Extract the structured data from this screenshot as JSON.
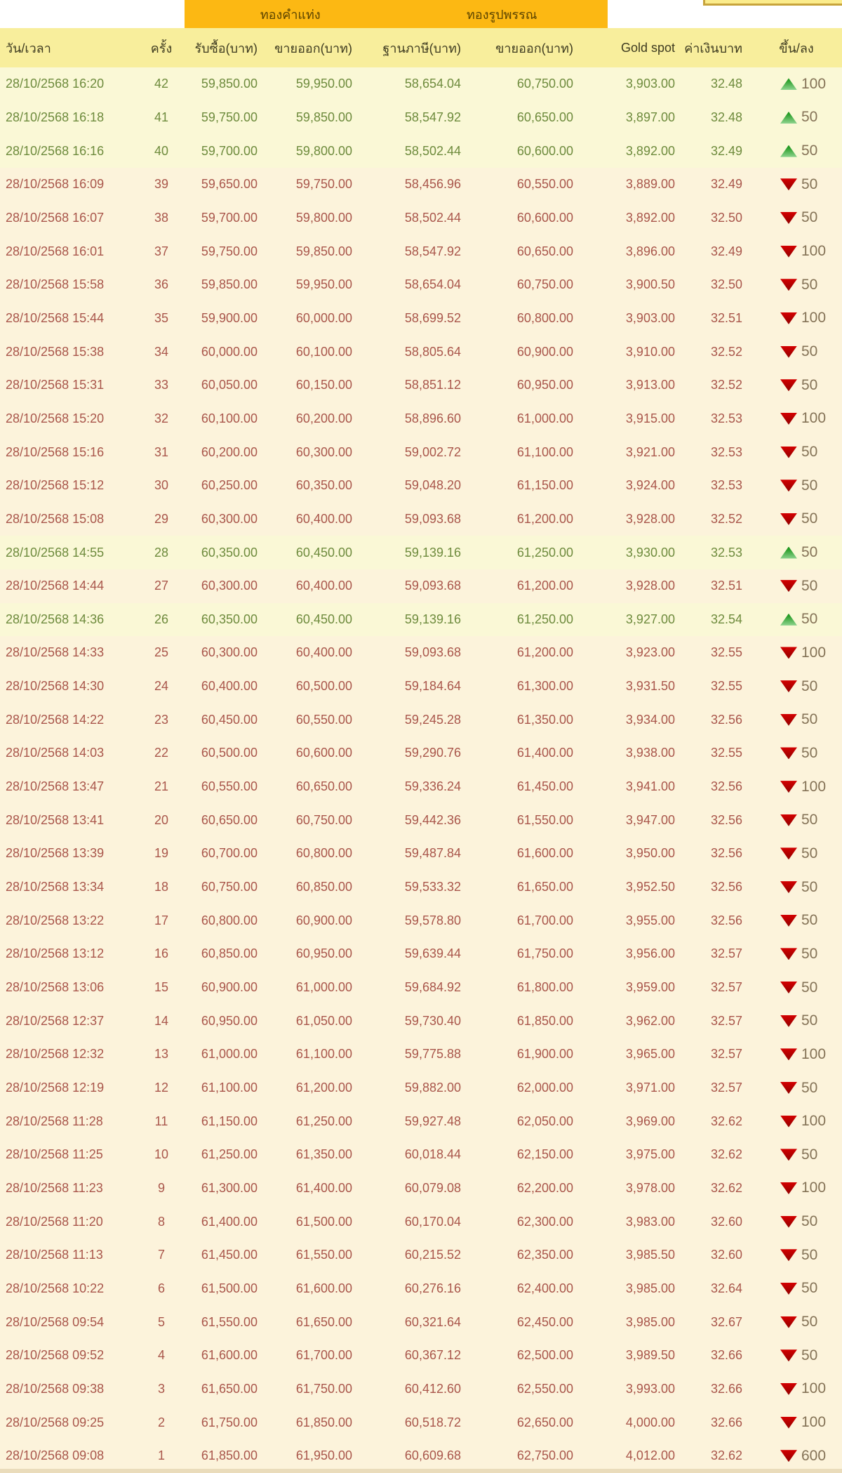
{
  "band": {
    "gold_bar_label": "ทองคำแท่ง",
    "ornament_label": "ทองรูปพรรณ"
  },
  "table": {
    "columns": [
      "วัน/เวลา",
      "ครั้ง",
      "รับซื้อ(บาท)",
      "ขายออก(บาท)",
      "ฐานภาษี(บาท)",
      "ขายออก(บาท)",
      "Gold spot",
      "ค่าเงินบาท",
      "ขึ้น/ลง"
    ],
    "rows": [
      {
        "datetime": "28/10/2568 16:20",
        "no": "42",
        "buy": "59,850.00",
        "sell": "59,950.00",
        "tax_base": "58,654.04",
        "ornament_sell": "60,750.00",
        "gold_spot": "3,903.00",
        "baht_rate": "32.48",
        "direction": "up",
        "change": "100"
      },
      {
        "datetime": "28/10/2568 16:18",
        "no": "41",
        "buy": "59,750.00",
        "sell": "59,850.00",
        "tax_base": "58,547.92",
        "ornament_sell": "60,650.00",
        "gold_spot": "3,897.00",
        "baht_rate": "32.48",
        "direction": "up",
        "change": "50"
      },
      {
        "datetime": "28/10/2568 16:16",
        "no": "40",
        "buy": "59,700.00",
        "sell": "59,800.00",
        "tax_base": "58,502.44",
        "ornament_sell": "60,600.00",
        "gold_spot": "3,892.00",
        "baht_rate": "32.49",
        "direction": "up",
        "change": "50"
      },
      {
        "datetime": "28/10/2568 16:09",
        "no": "39",
        "buy": "59,650.00",
        "sell": "59,750.00",
        "tax_base": "58,456.96",
        "ornament_sell": "60,550.00",
        "gold_spot": "3,889.00",
        "baht_rate": "32.49",
        "direction": "down",
        "change": "50"
      },
      {
        "datetime": "28/10/2568 16:07",
        "no": "38",
        "buy": "59,700.00",
        "sell": "59,800.00",
        "tax_base": "58,502.44",
        "ornament_sell": "60,600.00",
        "gold_spot": "3,892.00",
        "baht_rate": "32.50",
        "direction": "down",
        "change": "50"
      },
      {
        "datetime": "28/10/2568 16:01",
        "no": "37",
        "buy": "59,750.00",
        "sell": "59,850.00",
        "tax_base": "58,547.92",
        "ornament_sell": "60,650.00",
        "gold_spot": "3,896.00",
        "baht_rate": "32.49",
        "direction": "down",
        "change": "100"
      },
      {
        "datetime": "28/10/2568 15:58",
        "no": "36",
        "buy": "59,850.00",
        "sell": "59,950.00",
        "tax_base": "58,654.04",
        "ornament_sell": "60,750.00",
        "gold_spot": "3,900.50",
        "baht_rate": "32.50",
        "direction": "down",
        "change": "50"
      },
      {
        "datetime": "28/10/2568 15:44",
        "no": "35",
        "buy": "59,900.00",
        "sell": "60,000.00",
        "tax_base": "58,699.52",
        "ornament_sell": "60,800.00",
        "gold_spot": "3,903.00",
        "baht_rate": "32.51",
        "direction": "down",
        "change": "100"
      },
      {
        "datetime": "28/10/2568 15:38",
        "no": "34",
        "buy": "60,000.00",
        "sell": "60,100.00",
        "tax_base": "58,805.64",
        "ornament_sell": "60,900.00",
        "gold_spot": "3,910.00",
        "baht_rate": "32.52",
        "direction": "down",
        "change": "50"
      },
      {
        "datetime": "28/10/2568 15:31",
        "no": "33",
        "buy": "60,050.00",
        "sell": "60,150.00",
        "tax_base": "58,851.12",
        "ornament_sell": "60,950.00",
        "gold_spot": "3,913.00",
        "baht_rate": "32.52",
        "direction": "down",
        "change": "50"
      },
      {
        "datetime": "28/10/2568 15:20",
        "no": "32",
        "buy": "60,100.00",
        "sell": "60,200.00",
        "tax_base": "58,896.60",
        "ornament_sell": "61,000.00",
        "gold_spot": "3,915.00",
        "baht_rate": "32.53",
        "direction": "down",
        "change": "100"
      },
      {
        "datetime": "28/10/2568 15:16",
        "no": "31",
        "buy": "60,200.00",
        "sell": "60,300.00",
        "tax_base": "59,002.72",
        "ornament_sell": "61,100.00",
        "gold_spot": "3,921.00",
        "baht_rate": "32.53",
        "direction": "down",
        "change": "50"
      },
      {
        "datetime": "28/10/2568 15:12",
        "no": "30",
        "buy": "60,250.00",
        "sell": "60,350.00",
        "tax_base": "59,048.20",
        "ornament_sell": "61,150.00",
        "gold_spot": "3,924.00",
        "baht_rate": "32.53",
        "direction": "down",
        "change": "50"
      },
      {
        "datetime": "28/10/2568 15:08",
        "no": "29",
        "buy": "60,300.00",
        "sell": "60,400.00",
        "tax_base": "59,093.68",
        "ornament_sell": "61,200.00",
        "gold_spot": "3,928.00",
        "baht_rate": "32.52",
        "direction": "down",
        "change": "50"
      },
      {
        "datetime": "28/10/2568 14:55",
        "no": "28",
        "buy": "60,350.00",
        "sell": "60,450.00",
        "tax_base": "59,139.16",
        "ornament_sell": "61,250.00",
        "gold_spot": "3,930.00",
        "baht_rate": "32.53",
        "direction": "up",
        "change": "50"
      },
      {
        "datetime": "28/10/2568 14:44",
        "no": "27",
        "buy": "60,300.00",
        "sell": "60,400.00",
        "tax_base": "59,093.68",
        "ornament_sell": "61,200.00",
        "gold_spot": "3,928.00",
        "baht_rate": "32.51",
        "direction": "down",
        "change": "50"
      },
      {
        "datetime": "28/10/2568 14:36",
        "no": "26",
        "buy": "60,350.00",
        "sell": "60,450.00",
        "tax_base": "59,139.16",
        "ornament_sell": "61,250.00",
        "gold_spot": "3,927.00",
        "baht_rate": "32.54",
        "direction": "up",
        "change": "50"
      },
      {
        "datetime": "28/10/2568 14:33",
        "no": "25",
        "buy": "60,300.00",
        "sell": "60,400.00",
        "tax_base": "59,093.68",
        "ornament_sell": "61,200.00",
        "gold_spot": "3,923.00",
        "baht_rate": "32.55",
        "direction": "down",
        "change": "100"
      },
      {
        "datetime": "28/10/2568 14:30",
        "no": "24",
        "buy": "60,400.00",
        "sell": "60,500.00",
        "tax_base": "59,184.64",
        "ornament_sell": "61,300.00",
        "gold_spot": "3,931.50",
        "baht_rate": "32.55",
        "direction": "down",
        "change": "50"
      },
      {
        "datetime": "28/10/2568 14:22",
        "no": "23",
        "buy": "60,450.00",
        "sell": "60,550.00",
        "tax_base": "59,245.28",
        "ornament_sell": "61,350.00",
        "gold_spot": "3,934.00",
        "baht_rate": "32.56",
        "direction": "down",
        "change": "50"
      },
      {
        "datetime": "28/10/2568 14:03",
        "no": "22",
        "buy": "60,500.00",
        "sell": "60,600.00",
        "tax_base": "59,290.76",
        "ornament_sell": "61,400.00",
        "gold_spot": "3,938.00",
        "baht_rate": "32.55",
        "direction": "down",
        "change": "50"
      },
      {
        "datetime": "28/10/2568 13:47",
        "no": "21",
        "buy": "60,550.00",
        "sell": "60,650.00",
        "tax_base": "59,336.24",
        "ornament_sell": "61,450.00",
        "gold_spot": "3,941.00",
        "baht_rate": "32.56",
        "direction": "down",
        "change": "100"
      },
      {
        "datetime": "28/10/2568 13:41",
        "no": "20",
        "buy": "60,650.00",
        "sell": "60,750.00",
        "tax_base": "59,442.36",
        "ornament_sell": "61,550.00",
        "gold_spot": "3,947.00",
        "baht_rate": "32.56",
        "direction": "down",
        "change": "50"
      },
      {
        "datetime": "28/10/2568 13:39",
        "no": "19",
        "buy": "60,700.00",
        "sell": "60,800.00",
        "tax_base": "59,487.84",
        "ornament_sell": "61,600.00",
        "gold_spot": "3,950.00",
        "baht_rate": "32.56",
        "direction": "down",
        "change": "50"
      },
      {
        "datetime": "28/10/2568 13:34",
        "no": "18",
        "buy": "60,750.00",
        "sell": "60,850.00",
        "tax_base": "59,533.32",
        "ornament_sell": "61,650.00",
        "gold_spot": "3,952.50",
        "baht_rate": "32.56",
        "direction": "down",
        "change": "50"
      },
      {
        "datetime": "28/10/2568 13:22",
        "no": "17",
        "buy": "60,800.00",
        "sell": "60,900.00",
        "tax_base": "59,578.80",
        "ornament_sell": "61,700.00",
        "gold_spot": "3,955.00",
        "baht_rate": "32.56",
        "direction": "down",
        "change": "50"
      },
      {
        "datetime": "28/10/2568 13:12",
        "no": "16",
        "buy": "60,850.00",
        "sell": "60,950.00",
        "tax_base": "59,639.44",
        "ornament_sell": "61,750.00",
        "gold_spot": "3,956.00",
        "baht_rate": "32.57",
        "direction": "down",
        "change": "50"
      },
      {
        "datetime": "28/10/2568 13:06",
        "no": "15",
        "buy": "60,900.00",
        "sell": "61,000.00",
        "tax_base": "59,684.92",
        "ornament_sell": "61,800.00",
        "gold_spot": "3,959.00",
        "baht_rate": "32.57",
        "direction": "down",
        "change": "50"
      },
      {
        "datetime": "28/10/2568 12:37",
        "no": "14",
        "buy": "60,950.00",
        "sell": "61,050.00",
        "tax_base": "59,730.40",
        "ornament_sell": "61,850.00",
        "gold_spot": "3,962.00",
        "baht_rate": "32.57",
        "direction": "down",
        "change": "50"
      },
      {
        "datetime": "28/10/2568 12:32",
        "no": "13",
        "buy": "61,000.00",
        "sell": "61,100.00",
        "tax_base": "59,775.88",
        "ornament_sell": "61,900.00",
        "gold_spot": "3,965.00",
        "baht_rate": "32.57",
        "direction": "down",
        "change": "100"
      },
      {
        "datetime": "28/10/2568 12:19",
        "no": "12",
        "buy": "61,100.00",
        "sell": "61,200.00",
        "tax_base": "59,882.00",
        "ornament_sell": "62,000.00",
        "gold_spot": "3,971.00",
        "baht_rate": "32.57",
        "direction": "down",
        "change": "50"
      },
      {
        "datetime": "28/10/2568 11:28",
        "no": "11",
        "buy": "61,150.00",
        "sell": "61,250.00",
        "tax_base": "59,927.48",
        "ornament_sell": "62,050.00",
        "gold_spot": "3,969.00",
        "baht_rate": "32.62",
        "direction": "down",
        "change": "100"
      },
      {
        "datetime": "28/10/2568 11:25",
        "no": "10",
        "buy": "61,250.00",
        "sell": "61,350.00",
        "tax_base": "60,018.44",
        "ornament_sell": "62,150.00",
        "gold_spot": "3,975.00",
        "baht_rate": "32.62",
        "direction": "down",
        "change": "50"
      },
      {
        "datetime": "28/10/2568 11:23",
        "no": "9",
        "buy": "61,300.00",
        "sell": "61,400.00",
        "tax_base": "60,079.08",
        "ornament_sell": "62,200.00",
        "gold_spot": "3,978.00",
        "baht_rate": "32.62",
        "direction": "down",
        "change": "100"
      },
      {
        "datetime": "28/10/2568 11:20",
        "no": "8",
        "buy": "61,400.00",
        "sell": "61,500.00",
        "tax_base": "60,170.04",
        "ornament_sell": "62,300.00",
        "gold_spot": "3,983.00",
        "baht_rate": "32.60",
        "direction": "down",
        "change": "50"
      },
      {
        "datetime": "28/10/2568 11:13",
        "no": "7",
        "buy": "61,450.00",
        "sell": "61,550.00",
        "tax_base": "60,215.52",
        "ornament_sell": "62,350.00",
        "gold_spot": "3,985.50",
        "baht_rate": "32.60",
        "direction": "down",
        "change": "50"
      },
      {
        "datetime": "28/10/2568 10:22",
        "no": "6",
        "buy": "61,500.00",
        "sell": "61,600.00",
        "tax_base": "60,276.16",
        "ornament_sell": "62,400.00",
        "gold_spot": "3,985.00",
        "baht_rate": "32.64",
        "direction": "down",
        "change": "50"
      },
      {
        "datetime": "28/10/2568 09:54",
        "no": "5",
        "buy": "61,550.00",
        "sell": "61,650.00",
        "tax_base": "60,321.64",
        "ornament_sell": "62,450.00",
        "gold_spot": "3,985.00",
        "baht_rate": "32.67",
        "direction": "down",
        "change": "50"
      },
      {
        "datetime": "28/10/2568 09:52",
        "no": "4",
        "buy": "61,600.00",
        "sell": "61,700.00",
        "tax_base": "60,367.12",
        "ornament_sell": "62,500.00",
        "gold_spot": "3,989.50",
        "baht_rate": "32.66",
        "direction": "down",
        "change": "50"
      },
      {
        "datetime": "28/10/2568 09:38",
        "no": "3",
        "buy": "61,650.00",
        "sell": "61,750.00",
        "tax_base": "60,412.60",
        "ornament_sell": "62,550.00",
        "gold_spot": "3,993.00",
        "baht_rate": "32.66",
        "direction": "down",
        "change": "100"
      },
      {
        "datetime": "28/10/2568 09:25",
        "no": "2",
        "buy": "61,750.00",
        "sell": "61,850.00",
        "tax_base": "60,518.72",
        "ornament_sell": "62,650.00",
        "gold_spot": "4,000.00",
        "baht_rate": "32.66",
        "direction": "down",
        "change": "100"
      },
      {
        "datetime": "28/10/2568 09:08",
        "no": "1",
        "buy": "61,850.00",
        "sell": "61,950.00",
        "tax_base": "60,609.68",
        "ornament_sell": "62,750.00",
        "gold_spot": "4,012.00",
        "baht_rate": "32.62",
        "direction": "down",
        "change": "600"
      }
    ]
  },
  "colors": {
    "band_bg": "#FCB813",
    "header_bg": "#F8EE9C",
    "row_up_bg": "#FAF8D6",
    "row_down_bg": "#FCF3DB",
    "up_text": "#6E8B3D",
    "down_text": "#A9564B",
    "up_arrow": "#0E8F0E",
    "down_arrow": "#C00000",
    "change_text": "#857357"
  }
}
